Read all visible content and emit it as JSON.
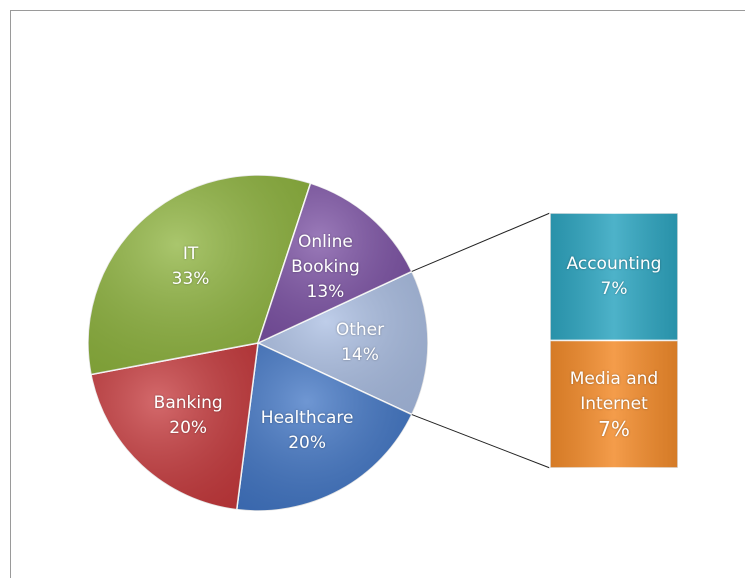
{
  "chart_data": {
    "type": "pie",
    "categories": [
      "Other",
      "Healthcare",
      "Banking",
      "IT",
      "Online Booking"
    ],
    "values": [
      14,
      20,
      20,
      33,
      13
    ],
    "value_labels": [
      "14%",
      "20%",
      "20%",
      "33%",
      "13%"
    ],
    "colors": [
      "#a9bde2",
      "#3f74c4",
      "#c6383b",
      "#8db33c",
      "#7a4fa3"
    ],
    "secondary": {
      "categories": [
        "Accounting",
        "Media and Internet"
      ],
      "values": [
        7,
        7
      ],
      "value_labels": [
        "7%",
        "7%"
      ],
      "colors": [
        "#2ea5c0",
        "#f28b2b"
      ]
    }
  }
}
